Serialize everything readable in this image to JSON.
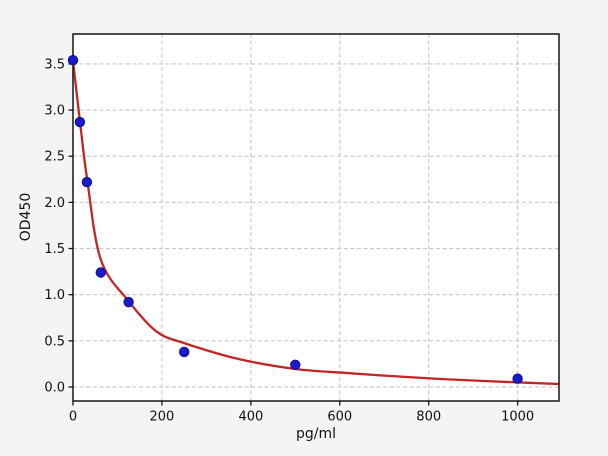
{
  "figure": {
    "background_color": "#f4f4f4",
    "plot_background_color": "#ffffff",
    "grid_color": "#c7c7c7",
    "spine_color": "#141414",
    "text_color": "#111111"
  },
  "chart_data": {
    "type": "scatter",
    "title": "",
    "xlabel": "pg/ml",
    "ylabel": "OD450",
    "xlim": [
      0,
      1093
    ],
    "ylim": [
      -0.152,
      3.824
    ],
    "grid": true,
    "legend": false,
    "x_ticks": [
      0,
      200,
      400,
      600,
      800,
      1000
    ],
    "x_tick_labels": [
      "0",
      "200",
      "400",
      "600",
      "800",
      "1000"
    ],
    "y_ticks": [
      0,
      0.5,
      1,
      1.5,
      2,
      2.5,
      3,
      3.5
    ],
    "y_tick_labels": [
      "0.0",
      "0.5",
      "1.0",
      "1.5",
      "2.0",
      "2.5",
      "3.0",
      "3.5"
    ],
    "series": [
      {
        "name": "standard-points",
        "type": "scatter",
        "marker_color": "#1b1bcd",
        "marker_edge_color": "#0d0d8c",
        "x": [
          0,
          15.6,
          31.25,
          62.5,
          125,
          250,
          500,
          1000
        ],
        "y": [
          3.54,
          2.87,
          2.22,
          1.24,
          0.92,
          0.38,
          0.24,
          0.09
        ]
      },
      {
        "name": "4pl-fit-curve",
        "type": "line",
        "line_color": "#c32525",
        "points": [
          [
            0,
            3.53
          ],
          [
            15.6,
            2.88
          ],
          [
            31.25,
            2.27
          ],
          [
            62.5,
            1.38
          ],
          [
            125,
            0.93
          ],
          [
            188,
            0.6
          ],
          [
            250,
            0.475
          ],
          [
            375,
            0.3
          ],
          [
            500,
            0.195
          ],
          [
            625,
            0.148
          ],
          [
            750,
            0.108
          ],
          [
            875,
            0.075
          ],
          [
            1000,
            0.05
          ],
          [
            1093,
            0.032
          ]
        ]
      }
    ]
  }
}
